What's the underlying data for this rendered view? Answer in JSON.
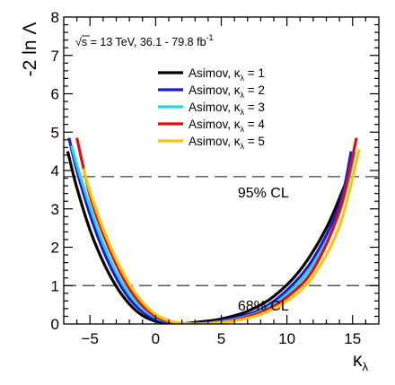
{
  "chart_data": {
    "type": "line",
    "xlabel": "κ",
    "xlabel_sub": "λ",
    "ylabel": "-2 ln Λ",
    "xlim": [
      -7,
      17
    ],
    "ylim": [
      0,
      8
    ],
    "xticks": [
      -5,
      0,
      5,
      10,
      15
    ],
    "yticks": [
      0,
      1,
      2,
      3,
      4,
      5,
      6,
      7,
      8
    ],
    "annotation": {
      "sqrt_symbol": "√",
      "s": "s",
      "rest": " = 13 TeV, 36.1 - 79.8 fb",
      "superscript": "-1"
    },
    "reference_lines": [
      {
        "y": 3.84,
        "label": "95% CL",
        "label_x": 8.2,
        "label_y": 3.3
      },
      {
        "y": 1.0,
        "label": "68% CL",
        "label_x": 8.2,
        "label_y": 0.35
      }
    ],
    "legend_position": "top-center",
    "series": [
      {
        "name": "Asimov, κ",
        "sub": "λ",
        "suffix": " = 1",
        "color": "#000000",
        "x": [
          -6.7,
          -6.0,
          -5.0,
          -4.0,
          -3.0,
          -2.0,
          -1.0,
          0.0,
          1.0,
          2.0,
          2.5,
          3.5,
          5.0,
          7.0,
          9.0,
          11.0,
          13.0,
          14.5
        ],
        "y": [
          4.5,
          3.55,
          2.45,
          1.62,
          0.98,
          0.52,
          0.22,
          0.07,
          0.02,
          0.0,
          0.02,
          0.06,
          0.13,
          0.33,
          0.72,
          1.4,
          2.5,
          3.7
        ]
      },
      {
        "name": "Asimov, κ",
        "sub": "λ",
        "suffix": " = 2",
        "color": "#1a1ad6",
        "x": [
          -6.6,
          -6.0,
          -5.0,
          -4.0,
          -3.0,
          -2.0,
          -1.0,
          0.0,
          1.0,
          2.0,
          2.8,
          4.0,
          6.0,
          8.0,
          10.0,
          12.0,
          14.0,
          14.9
        ],
        "y": [
          4.85,
          4.0,
          2.85,
          1.92,
          1.2,
          0.66,
          0.32,
          0.12,
          0.04,
          0.01,
          0.0,
          0.03,
          0.15,
          0.38,
          0.88,
          1.7,
          3.1,
          4.5
        ]
      },
      {
        "name": "Asimov, κ",
        "sub": "λ",
        "suffix": " = 3",
        "color": "#29d4e8",
        "x": [
          -6.4,
          -6.0,
          -5.0,
          -4.0,
          -3.0,
          -2.0,
          -1.0,
          0.0,
          1.0,
          2.0,
          3.0,
          4.0,
          6.0,
          8.0,
          10.0,
          12.0,
          14.0,
          15.2
        ],
        "y": [
          4.65,
          4.15,
          3.05,
          2.1,
          1.35,
          0.78,
          0.4,
          0.17,
          0.06,
          0.01,
          0.0,
          0.02,
          0.12,
          0.33,
          0.78,
          1.55,
          2.9,
          4.5
        ]
      },
      {
        "name": "Asimov, κ",
        "sub": "λ",
        "suffix": " = 4",
        "color": "#e01010",
        "x": [
          -6.0,
          -5.0,
          -4.0,
          -3.0,
          -2.0,
          -1.0,
          0.0,
          1.0,
          2.0,
          3.0,
          4.0,
          6.0,
          8.0,
          10.0,
          12.0,
          14.0,
          15.3
        ],
        "y": [
          4.85,
          3.35,
          2.35,
          1.55,
          0.92,
          0.48,
          0.2,
          0.07,
          0.02,
          0.0,
          0.01,
          0.1,
          0.3,
          0.7,
          1.42,
          2.95,
          4.85
        ]
      },
      {
        "name": "Asimov, κ",
        "sub": "λ",
        "suffix": " = 5",
        "color": "#ffc20e",
        "x": [
          -5.5,
          -5.0,
          -4.0,
          -3.0,
          -2.0,
          -1.0,
          0.0,
          1.0,
          2.0,
          3.0,
          4.0,
          6.0,
          8.0,
          10.0,
          12.0,
          14.0,
          15.5
        ],
        "y": [
          4.05,
          3.45,
          2.48,
          1.68,
          1.04,
          0.57,
          0.25,
          0.09,
          0.02,
          0.0,
          0.01,
          0.08,
          0.25,
          0.6,
          1.25,
          2.55,
          4.55
        ]
      }
    ]
  }
}
